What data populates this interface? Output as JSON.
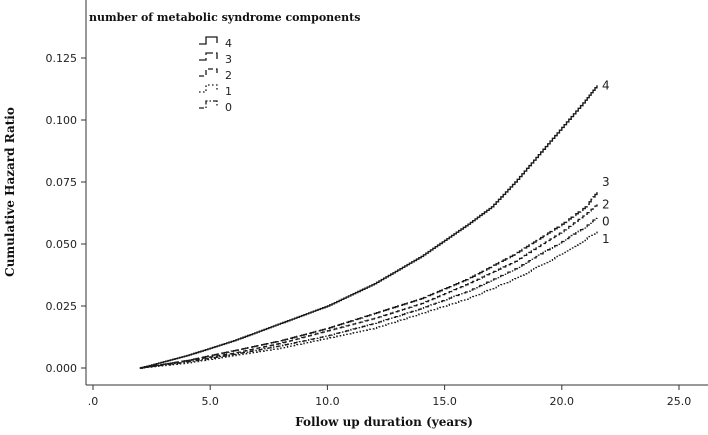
{
  "chart_data": {
    "type": "line",
    "xlabel": "Follow up duration (years)",
    "ylabel": "Cumulative Hazard Ratio",
    "xlim": [
      -2,
      27
    ],
    "ylim": [
      -0.006,
      0.14
    ],
    "x_ticks": [
      0,
      5,
      10,
      15,
      20,
      25
    ],
    "x_tick_labels": [
      ".0",
      "5.0",
      "10.0",
      "15.0",
      "20.0",
      "25.0"
    ],
    "y_ticks": [
      0,
      0.025,
      0.05,
      0.075,
      0.1,
      0.125
    ],
    "y_tick_labels": [
      "0.000",
      "0.025",
      "0.050",
      "0.075",
      "0.100",
      "0.125"
    ],
    "grid": false,
    "legend": {
      "title": "number of metabolic syndrome components",
      "placement": "top-left",
      "entries": [
        "4",
        "3",
        "2",
        "1",
        "0"
      ]
    },
    "series": [
      {
        "name": "4",
        "style": "solid",
        "x": [
          2.0,
          4.0,
          6.0,
          8.0,
          10.0,
          12.0,
          14.0,
          16.0,
          17.0,
          18.0,
          19.0,
          20.0,
          21.0,
          21.5
        ],
        "y": [
          0.0,
          0.005,
          0.011,
          0.018,
          0.025,
          0.034,
          0.045,
          0.058,
          0.065,
          0.075,
          0.086,
          0.097,
          0.108,
          0.114
        ]
      },
      {
        "name": "3",
        "style": "long-dash",
        "x": [
          2.0,
          4.0,
          6.0,
          8.0,
          10.0,
          12.0,
          14.0,
          16.0,
          18.0,
          20.0,
          21.0,
          21.5
        ],
        "y": [
          0.0,
          0.003,
          0.007,
          0.011,
          0.016,
          0.022,
          0.028,
          0.036,
          0.046,
          0.058,
          0.065,
          0.071
        ]
      },
      {
        "name": "2",
        "style": "dash",
        "x": [
          2.0,
          4.0,
          6.0,
          8.0,
          10.0,
          12.0,
          14.0,
          16.0,
          18.0,
          20.0,
          21.0,
          21.5
        ],
        "y": [
          0.0,
          0.003,
          0.006,
          0.01,
          0.015,
          0.02,
          0.026,
          0.034,
          0.043,
          0.055,
          0.062,
          0.066
        ]
      },
      {
        "name": "0",
        "style": "dash-dot",
        "x": [
          2.0,
          4.0,
          6.0,
          8.0,
          10.0,
          12.0,
          14.0,
          16.0,
          18.0,
          20.0,
          21.0,
          21.5
        ],
        "y": [
          0.0,
          0.0025,
          0.0055,
          0.009,
          0.013,
          0.018,
          0.024,
          0.031,
          0.04,
          0.051,
          0.057,
          0.061
        ]
      },
      {
        "name": "1",
        "style": "dotted",
        "x": [
          2.0,
          4.0,
          6.0,
          8.0,
          10.0,
          12.0,
          14.0,
          16.0,
          18.0,
          20.0,
          21.0,
          21.5
        ],
        "y": [
          0.0,
          0.002,
          0.005,
          0.008,
          0.012,
          0.016,
          0.022,
          0.028,
          0.036,
          0.046,
          0.052,
          0.055
        ]
      }
    ],
    "end_labels": [
      {
        "text": "4",
        "y": 0.114
      },
      {
        "text": "3",
        "y": 0.075
      },
      {
        "text": "2",
        "y": 0.066
      },
      {
        "text": "0",
        "y": 0.059
      },
      {
        "text": "1",
        "y": 0.052
      }
    ]
  }
}
